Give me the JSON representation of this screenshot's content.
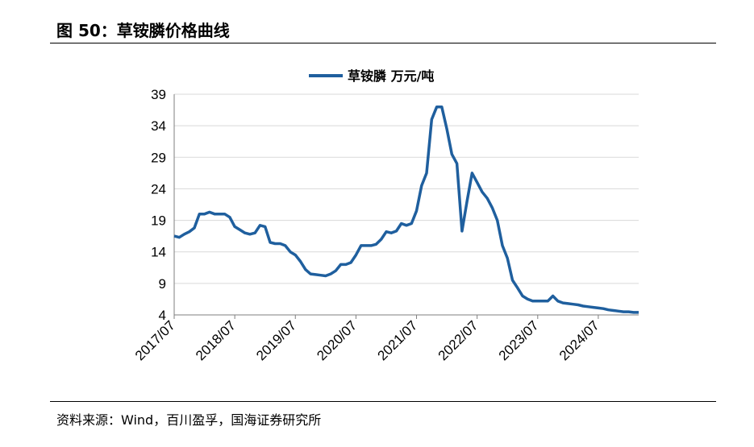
{
  "figure": {
    "title": "图 50：草铵膦价格曲线",
    "source": "资料来源：Wind，百川盈孚，国海证券研究所"
  },
  "chart_data": {
    "type": "line",
    "xlabel": "",
    "ylabel": "",
    "ylim": [
      4,
      39
    ],
    "yticks": [
      4,
      9,
      14,
      19,
      24,
      29,
      34,
      39
    ],
    "xlim": [
      "2017-07",
      "2025-03"
    ],
    "xticks": [
      "2017/07",
      "2018/07",
      "2019/07",
      "2020/07",
      "2021/07",
      "2022/07",
      "2023/07",
      "2024/07"
    ],
    "grid": "horizontal",
    "legend": "top-center",
    "series": [
      {
        "name": "草铵膦 万元/吨",
        "color": "#1f5f9e",
        "points": [
          [
            "2017-07",
            16.5
          ],
          [
            "2017-08",
            16.3
          ],
          [
            "2017-09",
            16.8
          ],
          [
            "2017-10",
            17.2
          ],
          [
            "2017-11",
            17.8
          ],
          [
            "2017-12",
            20.0
          ],
          [
            "2018-01",
            20.0
          ],
          [
            "2018-02",
            20.3
          ],
          [
            "2018-03",
            20.0
          ],
          [
            "2018-04",
            20.0
          ],
          [
            "2018-05",
            20.0
          ],
          [
            "2018-06",
            19.5
          ],
          [
            "2018-07",
            18.0
          ],
          [
            "2018-08",
            17.5
          ],
          [
            "2018-09",
            17.0
          ],
          [
            "2018-10",
            16.8
          ],
          [
            "2018-11",
            17.0
          ],
          [
            "2018-12",
            18.2
          ],
          [
            "2019-01",
            18.0
          ],
          [
            "2019-02",
            15.5
          ],
          [
            "2019-03",
            15.3
          ],
          [
            "2019-04",
            15.3
          ],
          [
            "2019-05",
            15.0
          ],
          [
            "2019-06",
            14.0
          ],
          [
            "2019-07",
            13.5
          ],
          [
            "2019-08",
            12.5
          ],
          [
            "2019-09",
            11.2
          ],
          [
            "2019-10",
            10.5
          ],
          [
            "2019-11",
            10.4
          ],
          [
            "2019-12",
            10.3
          ],
          [
            "2020-01",
            10.2
          ],
          [
            "2020-02",
            10.5
          ],
          [
            "2020-03",
            11.0
          ],
          [
            "2020-04",
            12.0
          ],
          [
            "2020-05",
            12.0
          ],
          [
            "2020-06",
            12.3
          ],
          [
            "2020-07",
            13.5
          ],
          [
            "2020-08",
            15.0
          ],
          [
            "2020-09",
            15.0
          ],
          [
            "2020-10",
            15.0
          ],
          [
            "2020-11",
            15.2
          ],
          [
            "2020-12",
            16.0
          ],
          [
            "2021-01",
            17.2
          ],
          [
            "2021-02",
            17.0
          ],
          [
            "2021-03",
            17.3
          ],
          [
            "2021-04",
            18.5
          ],
          [
            "2021-05",
            18.2
          ],
          [
            "2021-06",
            18.5
          ],
          [
            "2021-07",
            20.5
          ],
          [
            "2021-08",
            24.5
          ],
          [
            "2021-09",
            26.5
          ],
          [
            "2021-10",
            35.0
          ],
          [
            "2021-11",
            37.0
          ],
          [
            "2021-12",
            37.0
          ],
          [
            "2022-01",
            33.5
          ],
          [
            "2022-02",
            29.5
          ],
          [
            "2022-03",
            28.0
          ],
          [
            "2022-04",
            17.3
          ],
          [
            "2022-05",
            22.0
          ],
          [
            "2022-06",
            26.5
          ],
          [
            "2022-07",
            25.0
          ],
          [
            "2022-08",
            23.5
          ],
          [
            "2022-09",
            22.5
          ],
          [
            "2022-10",
            21.0
          ],
          [
            "2022-11",
            19.0
          ],
          [
            "2022-12",
            15.0
          ],
          [
            "2023-01",
            13.0
          ],
          [
            "2023-02",
            9.5
          ],
          [
            "2023-03",
            8.3
          ],
          [
            "2023-04",
            7.0
          ],
          [
            "2023-05",
            6.5
          ],
          [
            "2023-06",
            6.2
          ],
          [
            "2023-07",
            6.2
          ],
          [
            "2023-08",
            6.2
          ],
          [
            "2023-09",
            6.2
          ],
          [
            "2023-10",
            7.0
          ],
          [
            "2023-11",
            6.2
          ],
          [
            "2023-12",
            5.9
          ],
          [
            "2024-01",
            5.8
          ],
          [
            "2024-02",
            5.7
          ],
          [
            "2024-03",
            5.6
          ],
          [
            "2024-04",
            5.4
          ],
          [
            "2024-05",
            5.3
          ],
          [
            "2024-06",
            5.2
          ],
          [
            "2024-07",
            5.1
          ],
          [
            "2024-08",
            5.0
          ],
          [
            "2024-09",
            4.8
          ],
          [
            "2024-10",
            4.7
          ],
          [
            "2024-11",
            4.6
          ],
          [
            "2024-12",
            4.5
          ],
          [
            "2025-01",
            4.5
          ],
          [
            "2025-02",
            4.4
          ],
          [
            "2025-03",
            4.4
          ]
        ]
      }
    ]
  }
}
